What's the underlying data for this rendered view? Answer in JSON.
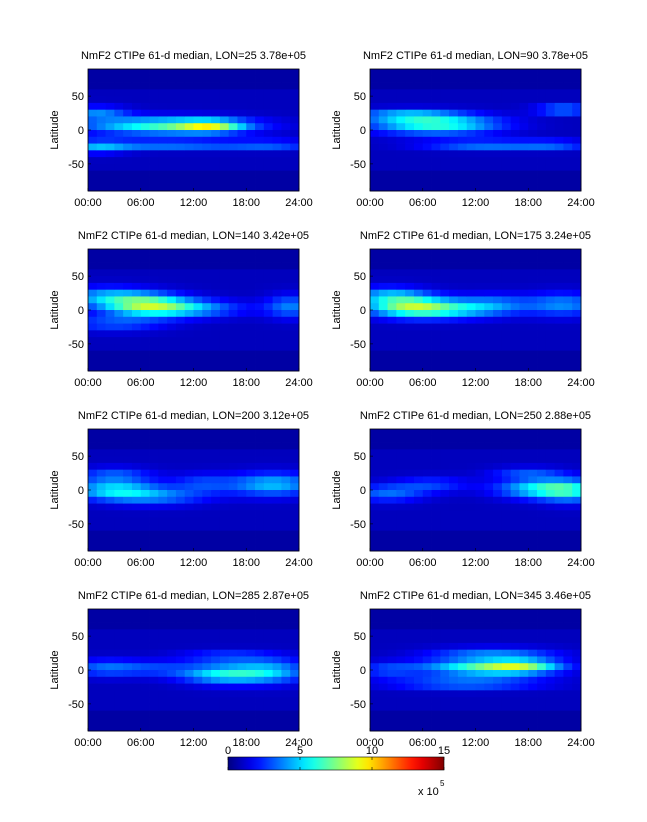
{
  "chart_data": [
    {
      "type": "heatmap",
      "title": "NmF2  CTIPe 61-d median, LON=25 3.78e+05",
      "ylabel": "Latitude",
      "xticks": [
        "00:00",
        "06:00",
        "12:00",
        "18:00",
        "24:00"
      ],
      "yticks": [
        "50",
        "0",
        "-50"
      ],
      "xlim": [
        0,
        24
      ],
      "ylim": [
        -90,
        90
      ],
      "blobs": [
        {
          "x": 9,
          "y": 6,
          "sx": 6.5,
          "sy": 9,
          "amp": 5.5
        },
        {
          "x": 14,
          "y": 6,
          "sx": 2.5,
          "sy": 6,
          "amp": 4.5
        },
        {
          "x": 9,
          "y": -22,
          "sx": 7,
          "sy": 5,
          "amp": 3.0
        },
        {
          "x": 21,
          "y": -22,
          "sx": 3.5,
          "sy": 5,
          "amp": 2.0
        },
        {
          "x": 1,
          "y": 25,
          "sx": 2.5,
          "sy": 7,
          "amp": 2.8
        },
        {
          "x": 1,
          "y": -25,
          "sx": 2.5,
          "sy": 7,
          "amp": 2.5
        }
      ]
    },
    {
      "type": "heatmap",
      "title": "NmF2  CTIPe 61-d median, LON=90 3.78e+05",
      "ylabel": "Latitude",
      "xticks": [
        "00:00",
        "06:00",
        "12:00",
        "18:00",
        "24:00"
      ],
      "yticks": [
        "50",
        "0",
        "-50"
      ],
      "xlim": [
        0,
        24
      ],
      "ylim": [
        -90,
        90
      ],
      "blobs": [
        {
          "x": 7.5,
          "y": 8,
          "sx": 5,
          "sy": 10,
          "amp": 5.5
        },
        {
          "x": 4,
          "y": 22,
          "sx": 4,
          "sy": 6,
          "amp": 3.0
        },
        {
          "x": 13,
          "y": -22,
          "sx": 5,
          "sy": 5,
          "amp": 3.0
        },
        {
          "x": 22,
          "y": 30,
          "sx": 2.2,
          "sy": 4,
          "amp": 4.5
        },
        {
          "x": 21,
          "y": -22,
          "sx": 3,
          "sy": 5,
          "amp": 2.0
        }
      ]
    },
    {
      "type": "heatmap",
      "title": "NmF2  CTIPe 61-d median, LON=140 3.42e+05",
      "ylabel": "Latitude",
      "xticks": [
        "00:00",
        "06:00",
        "12:00",
        "18:00",
        "24:00"
      ],
      "yticks": [
        "50",
        "0",
        "-50"
      ],
      "xlim": [
        0,
        24
      ],
      "ylim": [
        -90,
        90
      ],
      "blobs": [
        {
          "x": 6.5,
          "y": 8,
          "sx": 3.5,
          "sy": 11,
          "amp": 5.5
        },
        {
          "x": 11,
          "y": 2,
          "sx": 4.5,
          "sy": 9,
          "amp": 3.5
        },
        {
          "x": 2,
          "y": 20,
          "sx": 3.5,
          "sy": 10,
          "amp": 3.0
        },
        {
          "x": 23,
          "y": 5,
          "sx": 2,
          "sy": 12,
          "amp": 2.8
        },
        {
          "x": 3,
          "y": -20,
          "sx": 4,
          "sy": 8,
          "amp": 2.2
        }
      ]
    },
    {
      "type": "heatmap",
      "title": "NmF2  CTIPe 61-d median, LON=175 3.24e+05",
      "ylabel": "Latitude",
      "xticks": [
        "00:00",
        "06:00",
        "12:00",
        "18:00",
        "24:00"
      ],
      "yticks": [
        "50",
        "0",
        "-50"
      ],
      "xlim": [
        0,
        24
      ],
      "ylim": [
        -90,
        90
      ],
      "blobs": [
        {
          "x": 4.5,
          "y": 6,
          "sx": 3.5,
          "sy": 11,
          "amp": 5.5
        },
        {
          "x": 9,
          "y": 0,
          "sx": 4.5,
          "sy": 9,
          "amp": 3.5
        },
        {
          "x": 22,
          "y": 8,
          "sx": 3,
          "sy": 12,
          "amp": 3.0
        },
        {
          "x": 2,
          "y": 22,
          "sx": 3,
          "sy": 9,
          "amp": 2.8
        },
        {
          "x": 14,
          "y": 10,
          "sx": 3,
          "sy": 10,
          "amp": 2.2
        }
      ]
    },
    {
      "type": "heatmap",
      "title": "NmF2  CTIPe 61-d median, LON=200 3.12e+05",
      "ylabel": "Latitude",
      "xticks": [
        "00:00",
        "06:00",
        "12:00",
        "18:00",
        "24:00"
      ],
      "yticks": [
        "50",
        "0",
        "-50"
      ],
      "xlim": [
        0,
        24
      ],
      "ylim": [
        -90,
        90
      ],
      "blobs": [
        {
          "x": 3,
          "y": 0,
          "sx": 3.5,
          "sy": 10,
          "amp": 4.2
        },
        {
          "x": 21,
          "y": 8,
          "sx": 3.5,
          "sy": 12,
          "amp": 3.8
        },
        {
          "x": 8,
          "y": -10,
          "sx": 4,
          "sy": 9,
          "amp": 2.5
        },
        {
          "x": 3,
          "y": 22,
          "sx": 3,
          "sy": 8,
          "amp": 2.2
        },
        {
          "x": 13,
          "y": 10,
          "sx": 2.5,
          "sy": 10,
          "amp": 1.8
        }
      ]
    },
    {
      "type": "heatmap",
      "title": "NmF2  CTIPe 61-d median, LON=250 2.88e+05",
      "ylabel": "Latitude",
      "xticks": [
        "00:00",
        "06:00",
        "12:00",
        "18:00",
        "24:00"
      ],
      "yticks": [
        "50",
        "0",
        "-50"
      ],
      "xlim": [
        0,
        24
      ],
      "ylim": [
        -90,
        90
      ],
      "blobs": [
        {
          "x": 19.5,
          "y": 2,
          "sx": 3.5,
          "sy": 10,
          "amp": 4.6
        },
        {
          "x": 23,
          "y": -2,
          "sx": 2.5,
          "sy": 12,
          "amp": 3.2
        },
        {
          "x": 2,
          "y": -5,
          "sx": 3,
          "sy": 9,
          "amp": 2.5
        },
        {
          "x": 7,
          "y": 8,
          "sx": 3,
          "sy": 8,
          "amp": 1.8
        },
        {
          "x": 18,
          "y": 25,
          "sx": 3,
          "sy": 6,
          "amp": 2.0
        }
      ]
    },
    {
      "type": "heatmap",
      "title": "NmF2  CTIPe 61-d median, LON=285 2.87e+05",
      "ylabel": "Latitude",
      "xticks": [
        "00:00",
        "06:00",
        "12:00",
        "18:00",
        "24:00"
      ],
      "yticks": [
        "50",
        "0",
        "-50"
      ],
      "xlim": [
        0,
        24
      ],
      "ylim": [
        -90,
        90
      ],
      "blobs": [
        {
          "x": 15.5,
          "y": -6,
          "sx": 3.5,
          "sy": 10,
          "amp": 4.6
        },
        {
          "x": 21,
          "y": -2,
          "sx": 3,
          "sy": 12,
          "amp": 3.2
        },
        {
          "x": 2,
          "y": 3,
          "sx": 3,
          "sy": 9,
          "amp": 2.5
        },
        {
          "x": 8,
          "y": 2,
          "sx": 3,
          "sy": 8,
          "amp": 1.5
        },
        {
          "x": 16,
          "y": 20,
          "sx": 4,
          "sy": 6,
          "amp": 2.0
        }
      ]
    },
    {
      "type": "heatmap",
      "title": "NmF2  CTIPe 61-d median, LON=345 3.46e+05",
      "ylabel": "Latitude",
      "xticks": [
        "00:00",
        "06:00",
        "12:00",
        "18:00",
        "24:00"
      ],
      "yticks": [
        "50",
        "0",
        "-50"
      ],
      "xlim": [
        0,
        24
      ],
      "ylim": [
        -90,
        90
      ],
      "blobs": [
        {
          "x": 13,
          "y": 4,
          "sx": 5,
          "sy": 9,
          "amp": 5.5
        },
        {
          "x": 17.5,
          "y": 6,
          "sx": 3,
          "sy": 7,
          "amp": 4.0
        },
        {
          "x": 11,
          "y": -20,
          "sx": 6,
          "sy": 6,
          "amp": 3.0
        },
        {
          "x": 14,
          "y": 25,
          "sx": 5,
          "sy": 6,
          "amp": 2.5
        },
        {
          "x": 2,
          "y": 0,
          "sx": 2.5,
          "sy": 8,
          "amp": 1.8
        }
      ]
    }
  ],
  "colorbar": {
    "ticks": [
      "0",
      "5",
      "10",
      "15"
    ],
    "range": [
      0,
      15
    ],
    "multiplier": "x 10",
    "exponent": "5"
  }
}
